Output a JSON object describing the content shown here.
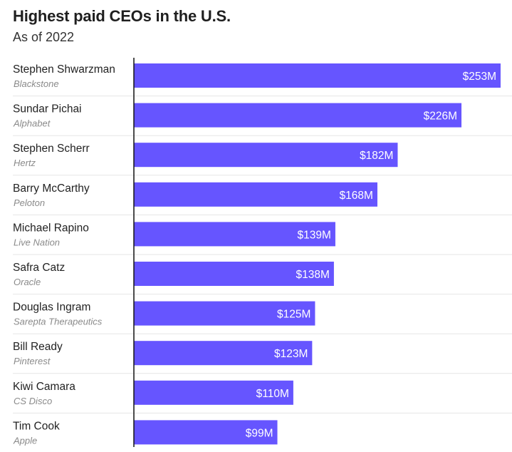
{
  "chart_data": {
    "type": "bar",
    "orientation": "horizontal",
    "title": "Highest paid CEOs in the U.S.",
    "subtitle": "As of 2022",
    "categories": [
      "Stephen Shwarzman",
      "Sundar Pichai",
      "Stephen Scherr",
      "Barry McCarthy",
      "Michael Rapino",
      "Safra Catz",
      "Douglas Ingram",
      "Bill Ready",
      "Kiwi Camara",
      "Tim Cook"
    ],
    "companies": [
      "Blackstone",
      "Alphabet",
      "Hertz",
      "Peloton",
      "Live Nation",
      "Oracle",
      "Sarepta Therapeutics",
      "Pinterest",
      "CS Disco",
      "Apple"
    ],
    "values": [
      253,
      226,
      182,
      168,
      139,
      138,
      125,
      123,
      110,
      99
    ],
    "value_labels": [
      "$253M",
      "$226M",
      "$182M",
      "$168M",
      "$139M",
      "$138M",
      "$125M",
      "$123M",
      "$110M",
      "$99M"
    ],
    "unit": "$M",
    "xlim": [
      0,
      253
    ],
    "grid": false,
    "legend": "none",
    "bar_color": "#6655ff",
    "separator_color": "#e6e6e6",
    "axis_color": "#111111"
  }
}
